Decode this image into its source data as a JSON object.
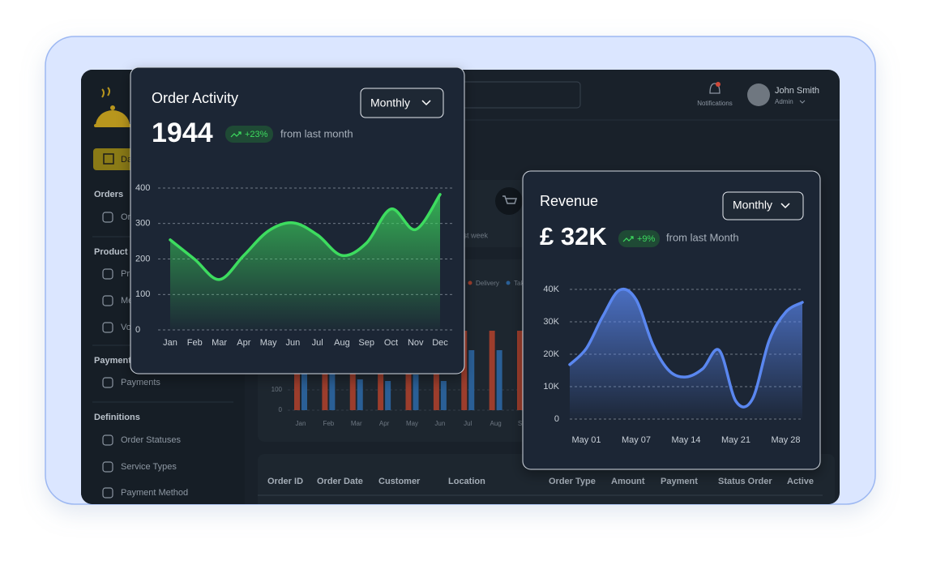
{
  "header": {
    "notifications": "Notifications",
    "user_name": "John Smith",
    "user_role": "Admin"
  },
  "sidebar": {
    "dashboard_button": "Dashboard",
    "sections": [
      {
        "title": "Orders",
        "items": [
          "Orders"
        ]
      },
      {
        "title": "Product",
        "items": [
          "Products",
          "Menu",
          "Vouchers"
        ]
      },
      {
        "title": "Payment",
        "items": [
          "Payments"
        ]
      },
      {
        "title": "Definitions",
        "items": [
          "Order Statuses",
          "Service Types",
          "Payment Method"
        ]
      }
    ]
  },
  "stat_card": {
    "note": "from last week"
  },
  "table": {
    "columns": [
      "Order ID",
      "Order Date",
      "Customer",
      "Location",
      "Order Type",
      "Amount",
      "Payment",
      "Status Order",
      "Active"
    ]
  },
  "chart_data": [
    {
      "type": "area",
      "title": "Order Activity",
      "dropdown": "Monthly",
      "headline": "1944",
      "change": "+23%",
      "change_note": "from last month",
      "categories": [
        "Jan",
        "Feb",
        "Mar",
        "Apr",
        "May",
        "Jun",
        "Jul",
        "Aug",
        "Sep",
        "Oct",
        "Nov",
        "Dec"
      ],
      "values": [
        254,
        199,
        142,
        210,
        279,
        302,
        268,
        210,
        245,
        341,
        283,
        382
      ],
      "color": "#3ddc5f",
      "ylim": [
        0,
        400
      ],
      "yticks": [
        0,
        100,
        200,
        300,
        400
      ],
      "grid": true
    },
    {
      "type": "area",
      "title": "Revenue",
      "dropdown": "Monthly",
      "headline": "£ 32K",
      "change": "+9%",
      "change_note": "from last Month",
      "categories": [
        null,
        "May 01",
        null,
        null,
        "May 07",
        null,
        null,
        "May 14",
        null,
        null,
        "May 21",
        null,
        null,
        "May 28",
        null
      ],
      "values": [
        16800,
        21800,
        31800,
        39800,
        36800,
        23000,
        14800,
        13000,
        15500,
        21200,
        5500,
        6200,
        24200,
        33000,
        36000
      ],
      "color": "#5a87f0",
      "ylim": [
        0,
        40000
      ],
      "yticks": [
        {
          "value": 0,
          "label": "0"
        },
        {
          "value": 10000,
          "label": "10K"
        },
        {
          "value": 20000,
          "label": "20K"
        },
        {
          "value": 30000,
          "label": "30K"
        },
        {
          "value": 40000,
          "label": "40K"
        }
      ],
      "grid": true
    },
    {
      "type": "bar",
      "categories": [
        "Jan",
        "Feb",
        "Mar",
        "Apr",
        "May",
        "Jun",
        "Jul",
        "Aug",
        "Sep"
      ],
      "series": [
        {
          "name": "Delivery",
          "color": "#9c3d2c",
          "values": [
            300,
            320,
            330,
            300,
            280,
            320,
            392,
            392,
            392
          ]
        },
        {
          "name": "Takeaway",
          "color": "#2a5f96",
          "values": [
            260,
            250,
            152,
            144,
            176,
            144,
            296,
            296,
            296
          ]
        }
      ],
      "ylim": [
        0,
        400
      ],
      "yticks": [
        0,
        100
      ],
      "grid": true
    }
  ]
}
